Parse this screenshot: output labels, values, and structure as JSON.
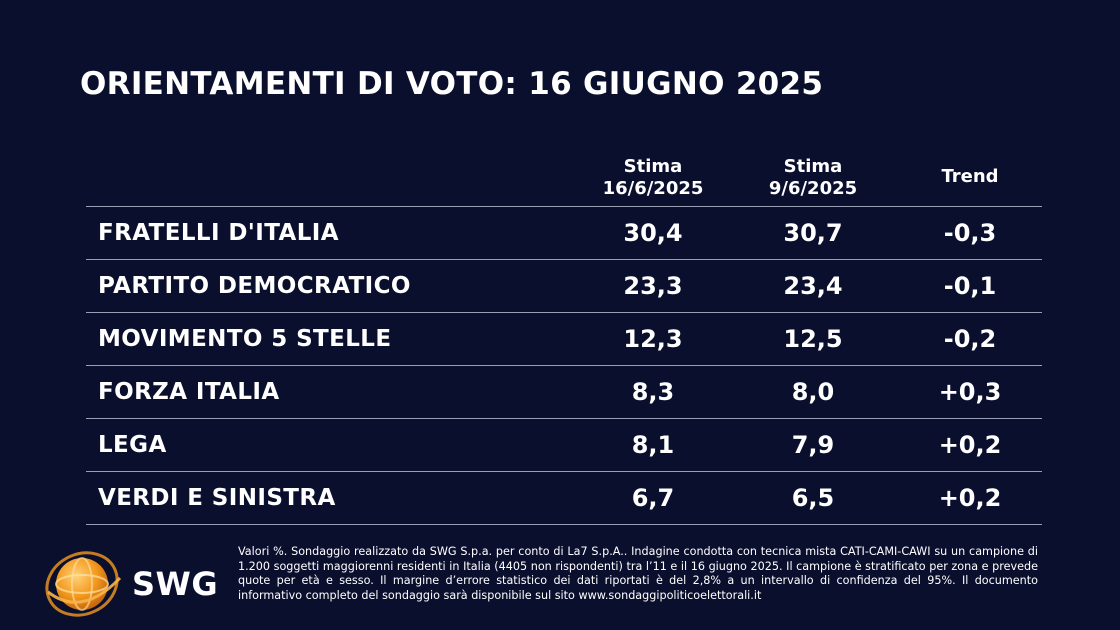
{
  "title": "ORIENTAMENTI DI VOTO: 16 GIUGNO 2025",
  "chart_data": {
    "type": "table",
    "columns": [
      {
        "line1": "Stima",
        "line2": "16/6/2025"
      },
      {
        "line1": "Stima",
        "line2": "9/6/2025"
      },
      {
        "line1": "Trend",
        "line2": ""
      }
    ],
    "rows": [
      {
        "party": "FRATELLI D'ITALIA",
        "stima_16_6": "30,4",
        "stima_9_6": "30,7",
        "trend": "-0,3"
      },
      {
        "party": "PARTITO DEMOCRATICO",
        "stima_16_6": "23,3",
        "stima_9_6": "23,4",
        "trend": "-0,1"
      },
      {
        "party": "MOVIMENTO 5 STELLE",
        "stima_16_6": "12,3",
        "stima_9_6": "12,5",
        "trend": "-0,2"
      },
      {
        "party": "FORZA ITALIA",
        "stima_16_6": "8,3",
        "stima_9_6": "8,0",
        "trend": "+0,3"
      },
      {
        "party": "LEGA",
        "stima_16_6": "8,1",
        "stima_9_6": "7,9",
        "trend": "+0,2"
      },
      {
        "party": "VERDI E SINISTRA",
        "stima_16_6": "6,7",
        "stima_9_6": "6,5",
        "trend": "+0,2"
      }
    ]
  },
  "logo": {
    "text": "SWG",
    "icon": "swg-globe-icon",
    "color": "#f39a1e"
  },
  "footnote": "Valori %. Sondaggio realizzato da SWG S.p.a. per conto di La7 S.p.A.. Indagine condotta con tecnica mista CATI-CAMI-CAWI su un campione di 1.200 soggetti maggiorenni residenti in Italia (4405 non rispondenti) tra l’11 e il 16 giugno 2025. Il campione è stratificato per zona e prevede quote per età e sesso. Il margine d’errore statistico dei dati riportati è del 2,8% a un intervallo di confidenza del 95%. Il documento informativo completo del sondaggio sarà disponibile sul sito www.sondaggipoliticoelettorali.it",
  "colors": {
    "background": "#0b0f2e",
    "text": "#ffffff",
    "rule": "#9aa0b4",
    "logo_orange": "#f39a1e"
  }
}
